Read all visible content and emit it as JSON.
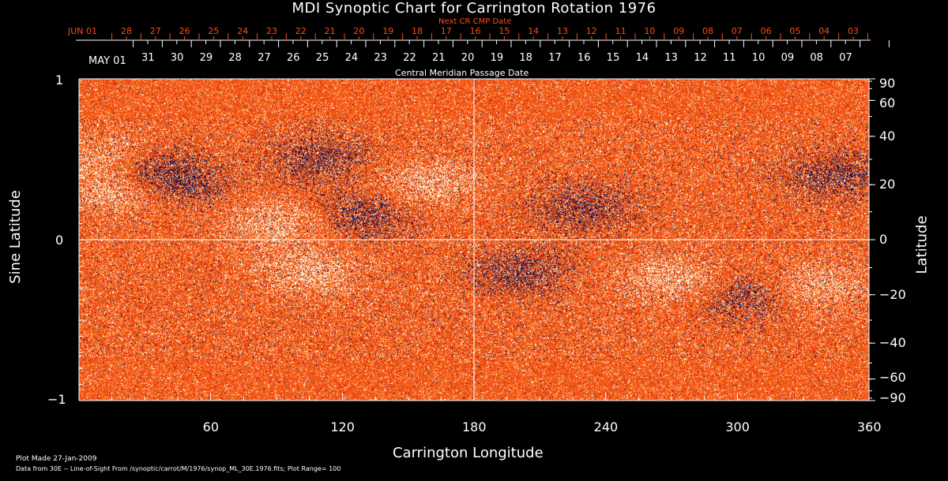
{
  "chart_data": {
    "type": "heatmap",
    "title": "MDI Synoptic Chart for Carrington Rotation 1976",
    "xlabel": "Carrington Longitude",
    "ylabel": "Sine Latitude",
    "right_ylabel": "Latitude",
    "xlim": [
      0,
      360
    ],
    "ylim": [
      -1,
      1
    ],
    "x_ticks": [
      "60",
      "120",
      "180",
      "240",
      "300",
      "360"
    ],
    "y_ticks": [
      "1",
      "0",
      "−1"
    ],
    "right_ticks": [
      {
        "label": "90",
        "lat": 90
      },
      {
        "label": "60",
        "lat": 60
      },
      {
        "label": "40",
        "lat": 40
      },
      {
        "label": "20",
        "lat": 20
      },
      {
        "label": "0",
        "lat": 0
      },
      {
        "label": "−20",
        "lat": -20
      },
      {
        "label": "−40",
        "lat": -40
      },
      {
        "label": "−60",
        "lat": -60
      },
      {
        "label": "−90",
        "lat": -90
      }
    ],
    "top_axis_title": "Next CR CMP Date",
    "top_axis_start": "JUN 01",
    "top_axis_labels": [
      "28",
      "27",
      "26",
      "25",
      "24",
      "23",
      "22",
      "21",
      "20",
      "19",
      "18",
      "17",
      "16",
      "15",
      "14",
      "13",
      "12",
      "11",
      "10",
      "09",
      "08",
      "07",
      "06",
      "05",
      "04",
      "03"
    ],
    "bottom_axis_title": "Central Meridian Passage Date",
    "bottom_axis_start": "MAY 01",
    "bottom_axis_labels": [
      "31",
      "30",
      "29",
      "28",
      "27",
      "26",
      "25",
      "24",
      "23",
      "22",
      "21",
      "20",
      "19",
      "18",
      "17",
      "16",
      "15",
      "14",
      "13",
      "12",
      "11",
      "10",
      "09",
      "08",
      "07"
    ],
    "plot_range": 100,
    "colors": {
      "background": "#ff5a1a",
      "positive": "#ffffff",
      "negative": "#0a0a50",
      "accent": "#ff4a1a"
    }
  },
  "footer": {
    "plot_made": "Plot Made 27-Jan-2009",
    "data_source": "Data from 30E -- Line-of-Sight From /synoptic/carrot/M/1976/synop_ML_30E.1976.fits; Plot Range=  100"
  }
}
